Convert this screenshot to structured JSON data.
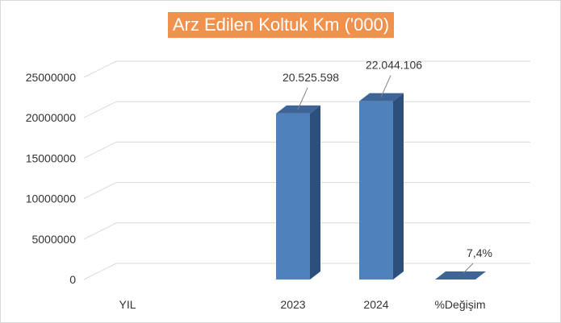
{
  "chart_data": {
    "type": "bar",
    "title": "Arz Edilen Koltuk Km ('000)",
    "categories": [
      "YIL",
      "2023",
      "2024",
      "%Değişim"
    ],
    "values": [
      0,
      20525598,
      22044106,
      0
    ],
    "data_labels": [
      "",
      "20.525.598",
      "22.044.106",
      "7,4%"
    ],
    "yticks": [
      "0",
      "5000000",
      "10000000",
      "15000000",
      "20000000",
      "25000000"
    ],
    "ylim": [
      0,
      25000000
    ],
    "grid": true,
    "legend": "none",
    "colors": {
      "title_bg": "#f0924e",
      "bar_front": "#4f81bd",
      "bar_side": "#2c4f7c",
      "bar_top": "#3e6596",
      "grid": "#d9d9d9"
    }
  }
}
